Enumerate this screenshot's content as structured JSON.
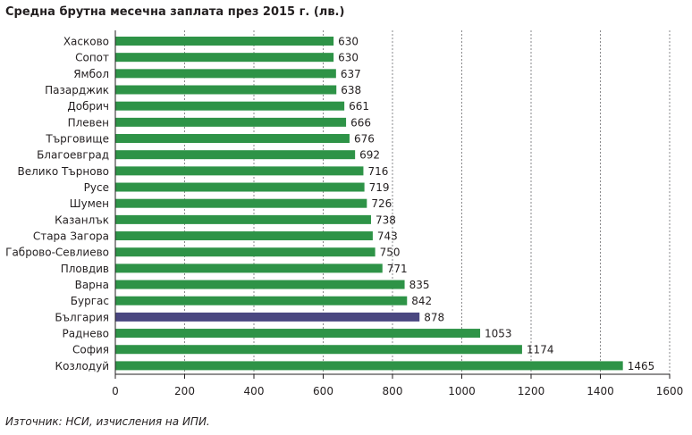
{
  "chart_data": {
    "type": "bar",
    "orientation": "horizontal",
    "title": "Средна брутна месечна заплата през 2015 г. (лв.)",
    "source": "Източник: НСИ, изчисления на ИПИ.",
    "categories": [
      "Хасково",
      "Сопот",
      "Ямбол",
      "Пазарджик",
      "Добрич",
      "Плевен",
      "Търговище",
      "Благоевград",
      "Велико Търново",
      "Русе",
      "Шумен",
      "Казанлък",
      "Стара Загора",
      "Габрово-Севлиево",
      "Пловдив",
      "Варна",
      "Бургас",
      "България",
      "Раднево",
      "София",
      "Козлодуй"
    ],
    "values": [
      630,
      630,
      637,
      638,
      661,
      666,
      676,
      692,
      716,
      719,
      726,
      738,
      743,
      750,
      771,
      835,
      842,
      878,
      1053,
      1174,
      1465
    ],
    "value_labels": [
      "630",
      "630",
      "637",
      "638",
      "661",
      "666",
      "676",
      "692",
      "716",
      "719",
      "726",
      "738",
      "743",
      "750",
      "771",
      "835",
      "842",
      "878",
      "1053",
      "1174",
      "1465"
    ],
    "xlim": [
      0,
      1600
    ],
    "xticks": [
      0,
      200,
      400,
      600,
      800,
      1000,
      1200,
      1400,
      1600
    ],
    "xtick_labels": [
      "0",
      "200",
      "400",
      "600",
      "800",
      "1000",
      "1200",
      "1400",
      "1600"
    ],
    "grid": "vertical dotted",
    "colors": {
      "bar": "#2e9347",
      "highlight": "#4a4780",
      "highlight_category": "България"
    }
  }
}
